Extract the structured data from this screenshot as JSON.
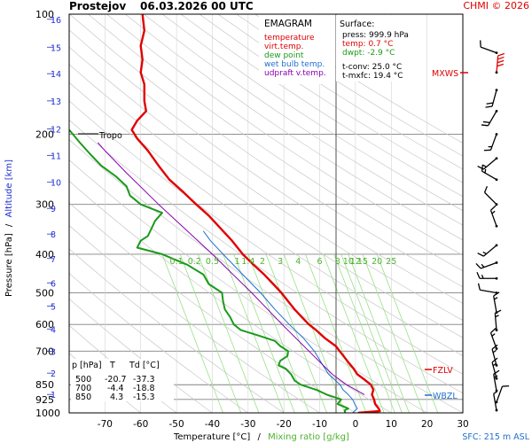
{
  "header": {
    "station": "Prostejov",
    "datetime": "06.03.2026 00 UTC",
    "copyright": "CHMI © 2026"
  },
  "legend": {
    "title": "EMAGRAM",
    "items": [
      {
        "label": "temperature",
        "color": "#e00000"
      },
      {
        "label": "virt.temp.",
        "color": "#e00000"
      },
      {
        "label": "dew point",
        "color": "#1a9a1a"
      },
      {
        "label": "wet bulb temp.",
        "color": "#1f6fd0"
      },
      {
        "label": "udpraft v.temp.",
        "color": "#8a00b0"
      }
    ]
  },
  "surface": {
    "title": "Surface:",
    "lines": [
      {
        "text": "press: 999.9 hPa",
        "color": "#000000"
      },
      {
        "text": "temp: 0.7 °C",
        "color": "#e00000"
      },
      {
        "text": "dwpt: -2.9 °C",
        "color": "#1a9a1a"
      },
      {
        "text": "",
        "color": "#000000"
      },
      {
        "text": "t-conv: 25.0 °C",
        "color": "#000000"
      },
      {
        "text": "t-mxfc: 19.4 °C",
        "color": "#000000"
      }
    ]
  },
  "level_table": {
    "headers": [
      "p [hPa]",
      "T",
      "Td [°C]"
    ],
    "rows": [
      [
        "500",
        "-20.7",
        "-37.3"
      ],
      [
        "700",
        "-4.4",
        "-18.8"
      ],
      [
        "850",
        "4.3",
        "-15.3"
      ]
    ]
  },
  "markers": {
    "tropo": "Tropo",
    "mxws": "MXWS",
    "fzlv": "FZLV",
    "wbzl": "WBZL",
    "sfc": "SFC: 215 m ASL"
  },
  "axes": {
    "ylabel_pressure": "Pressure [hPa]",
    "ylabel_sep": "/",
    "ylabel_altitude": "Altitude [km]",
    "xlabel_temp": "Temperature [°C]",
    "xlabel_sep": "/",
    "xlabel_mix": "Mixing ratio [g/kg]"
  },
  "colors": {
    "temperature": "#e00000",
    "dewpoint": "#1a9a1a",
    "wetbulb": "#1f6fd0",
    "parcel": "#8a00b0",
    "mixing": "#9be08a",
    "dry_adiabat": "#c8c8c8",
    "isobar": "#808080",
    "altitude": "#1f2fd0",
    "wind": "#000000"
  },
  "chart_data": {
    "type": "line",
    "title": "EMAGRAM",
    "xlabel": "Temperature [°C] / Mixing ratio [g/kg]",
    "ylabel": "Pressure [hPa] / Altitude [km]",
    "xlim": [
      -80,
      30
    ],
    "ylim": [
      1000,
      100
    ],
    "y_scale": "log",
    "x_ticks": [
      -70,
      -60,
      -50,
      -40,
      -30,
      -20,
      -10,
      0,
      10,
      20,
      30
    ],
    "pressure_ticks": [
      100,
      200,
      300,
      400,
      500,
      600,
      700,
      850,
      925,
      1000
    ],
    "altitude_ticks": [
      {
        "km": 1,
        "p": 899
      },
      {
        "km": 2,
        "p": 795
      },
      {
        "km": 3,
        "p": 701
      },
      {
        "km": 4,
        "p": 616
      },
      {
        "km": 5,
        "p": 540
      },
      {
        "km": 6,
        "p": 472
      },
      {
        "km": 7,
        "p": 410
      },
      {
        "km": 8,
        "p": 356
      },
      {
        "km": 9,
        "p": 307
      },
      {
        "km": 10,
        "p": 264
      },
      {
        "km": 11,
        "p": 226
      },
      {
        "km": 12,
        "p": 194
      },
      {
        "km": 13,
        "p": 165
      },
      {
        "km": 14,
        "p": 141
      },
      {
        "km": 15,
        "p": 121
      },
      {
        "km": 16,
        "p": 103
      }
    ],
    "mixing_ratio_labels": [
      "0.1",
      "0.2",
      "0.5",
      "1",
      "1.4",
      "2",
      "3",
      "4",
      "6",
      "8",
      "10",
      "12",
      "15",
      "20",
      "25"
    ],
    "mixing_ratio_label_temps": [
      -54,
      -49,
      -44,
      -37,
      -34,
      -30,
      -25,
      -20,
      -14,
      -9,
      -6,
      -4,
      -2,
      2,
      6
    ],
    "grid": true,
    "series": [
      {
        "name": "temperature",
        "color": "#e00000",
        "points": [
          {
            "p": 1000,
            "t": 0.7
          },
          {
            "p": 990,
            "t": 6.8
          },
          {
            "p": 975,
            "t": 6.5
          },
          {
            "p": 950,
            "t": 5.5
          },
          {
            "p": 925,
            "t": 5.2
          },
          {
            "p": 900,
            "t": 4.6
          },
          {
            "p": 875,
            "t": 5.0
          },
          {
            "p": 850,
            "t": 4.3
          },
          {
            "p": 825,
            "t": 2.5
          },
          {
            "p": 800,
            "t": 0.5
          },
          {
            "p": 775,
            "t": -0.5
          },
          {
            "p": 750,
            "t": -1.8
          },
          {
            "p": 700,
            "t": -4.4
          },
          {
            "p": 680,
            "t": -5.5
          },
          {
            "p": 650,
            "t": -8.5
          },
          {
            "p": 620,
            "t": -11.0
          },
          {
            "p": 600,
            "t": -13.0
          },
          {
            "p": 575,
            "t": -15.0
          },
          {
            "p": 550,
            "t": -17.0
          },
          {
            "p": 525,
            "t": -18.8
          },
          {
            "p": 500,
            "t": -20.7
          },
          {
            "p": 475,
            "t": -23.0
          },
          {
            "p": 450,
            "t": -25.5
          },
          {
            "p": 425,
            "t": -28.5
          },
          {
            "p": 400,
            "t": -31.5
          },
          {
            "p": 370,
            "t": -34.5
          },
          {
            "p": 350,
            "t": -37.0
          },
          {
            "p": 320,
            "t": -41.0
          },
          {
            "p": 300,
            "t": -44.5
          },
          {
            "p": 280,
            "t": -48.0
          },
          {
            "p": 260,
            "t": -52.0
          },
          {
            "p": 240,
            "t": -55.0
          },
          {
            "p": 220,
            "t": -58.0
          },
          {
            "p": 205,
            "t": -61.0
          },
          {
            "p": 195,
            "t": -62.5
          },
          {
            "p": 185,
            "t": -61.0
          },
          {
            "p": 175,
            "t": -58.5
          },
          {
            "p": 165,
            "t": -59.0
          },
          {
            "p": 150,
            "t": -59.0
          },
          {
            "p": 140,
            "t": -60.0
          },
          {
            "p": 130,
            "t": -59.5
          },
          {
            "p": 120,
            "t": -60.0
          },
          {
            "p": 110,
            "t": -59.0
          },
          {
            "p": 100,
            "t": -59.5
          }
        ]
      },
      {
        "name": "dew point",
        "color": "#1a9a1a",
        "points": [
          {
            "p": 1000,
            "t": -2.9
          },
          {
            "p": 985,
            "t": -3.0
          },
          {
            "p": 975,
            "t": -2.0
          },
          {
            "p": 950,
            "t": -5.0
          },
          {
            "p": 925,
            "t": -4.0
          },
          {
            "p": 900,
            "t": -8.0
          },
          {
            "p": 875,
            "t": -11.0
          },
          {
            "p": 850,
            "t": -15.3
          },
          {
            "p": 830,
            "t": -17.0
          },
          {
            "p": 800,
            "t": -18.0
          },
          {
            "p": 775,
            "t": -19.5
          },
          {
            "p": 760,
            "t": -21.5
          },
          {
            "p": 740,
            "t": -21.0
          },
          {
            "p": 720,
            "t": -19.0
          },
          {
            "p": 700,
            "t": -18.8
          },
          {
            "p": 680,
            "t": -21.0
          },
          {
            "p": 660,
            "t": -22.5
          },
          {
            "p": 640,
            "t": -27.0
          },
          {
            "p": 620,
            "t": -32.0
          },
          {
            "p": 600,
            "t": -34.0
          },
          {
            "p": 575,
            "t": -35.0
          },
          {
            "p": 550,
            "t": -36.5
          },
          {
            "p": 525,
            "t": -37.0
          },
          {
            "p": 500,
            "t": -37.3
          },
          {
            "p": 475,
            "t": -41.0
          },
          {
            "p": 450,
            "t": -42.5
          },
          {
            "p": 425,
            "t": -47.0
          },
          {
            "p": 400,
            "t": -54.0
          },
          {
            "p": 385,
            "t": -61.0
          },
          {
            "p": 370,
            "t": -60.0
          },
          {
            "p": 360,
            "t": -58.0
          },
          {
            "p": 345,
            "t": -57.0
          },
          {
            "p": 330,
            "t": -56.0
          },
          {
            "p": 315,
            "t": -54.0
          },
          {
            "p": 300,
            "t": -60.0
          },
          {
            "p": 285,
            "t": -63.0
          },
          {
            "p": 270,
            "t": -64.0
          },
          {
            "p": 255,
            "t": -67.0
          },
          {
            "p": 240,
            "t": -71.0
          },
          {
            "p": 225,
            "t": -74.0
          },
          {
            "p": 210,
            "t": -77.0
          },
          {
            "p": 195,
            "t": -80.0
          }
        ]
      },
      {
        "name": "wet bulb temp.",
        "color": "#1f6fd0",
        "points": [
          {
            "p": 1000,
            "t": -0.8
          },
          {
            "p": 975,
            "t": 0.5
          },
          {
            "p": 950,
            "t": -0.2
          },
          {
            "p": 925,
            "t": -0.8
          },
          {
            "p": 900,
            "t": -2.0
          },
          {
            "p": 875,
            "t": -3.5
          },
          {
            "p": 850,
            "t": -4.3
          },
          {
            "p": 800,
            "t": -7.5
          },
          {
            "p": 750,
            "t": -9.5
          },
          {
            "p": 700,
            "t": -11.5
          },
          {
            "p": 650,
            "t": -14.5
          },
          {
            "p": 600,
            "t": -18.5
          },
          {
            "p": 550,
            "t": -22.5
          },
          {
            "p": 500,
            "t": -26.5
          },
          {
            "p": 450,
            "t": -31.5
          },
          {
            "p": 400,
            "t": -37.0
          },
          {
            "p": 370,
            "t": -40.5
          },
          {
            "p": 350,
            "t": -42.5
          }
        ]
      },
      {
        "name": "udpraft v.temp.",
        "color": "#8a00b0",
        "points": [
          {
            "p": 900,
            "t": 2.5
          },
          {
            "p": 850,
            "t": -2.5
          },
          {
            "p": 800,
            "t": -6.5
          },
          {
            "p": 700,
            "t": -13.0
          },
          {
            "p": 600,
            "t": -20.5
          },
          {
            "p": 500,
            "t": -29.0
          },
          {
            "p": 400,
            "t": -40.0
          },
          {
            "p": 300,
            "t": -55.0
          },
          {
            "p": 250,
            "t": -64.0
          },
          {
            "p": 220,
            "t": -70.0
          },
          {
            "p": 210,
            "t": -72.0
          }
        ]
      }
    ],
    "markers": [
      {
        "label": "Tropo",
        "p": 200
      },
      {
        "label": "MXWS",
        "p": 140
      },
      {
        "label": "FZLV",
        "p": 790
      },
      {
        "label": "WBZL",
        "p": 907
      }
    ],
    "wind_barbs": [
      {
        "p": 125,
        "dir": 290,
        "speed": 10
      },
      {
        "p": 140,
        "dir": 5,
        "speed": 40
      },
      {
        "p": 155,
        "dir": 195,
        "speed": 20
      },
      {
        "p": 175,
        "dir": 210,
        "speed": 20
      },
      {
        "p": 200,
        "dir": 200,
        "speed": 15
      },
      {
        "p": 230,
        "dir": 230,
        "speed": 15
      },
      {
        "p": 260,
        "dir": 300,
        "speed": 15
      },
      {
        "p": 300,
        "dir": 315,
        "speed": 10
      },
      {
        "p": 340,
        "dir": 340,
        "speed": 15
      },
      {
        "p": 380,
        "dir": 230,
        "speed": 15
      },
      {
        "p": 420,
        "dir": 250,
        "speed": 15
      },
      {
        "p": 460,
        "dir": 270,
        "speed": 15
      },
      {
        "p": 500,
        "dir": 280,
        "speed": 10
      },
      {
        "p": 560,
        "dir": 350,
        "speed": 15
      },
      {
        "p": 620,
        "dir": 355,
        "speed": 15
      },
      {
        "p": 690,
        "dir": 340,
        "speed": 15
      },
      {
        "p": 760,
        "dir": 345,
        "speed": 15
      },
      {
        "p": 820,
        "dir": 345,
        "speed": 15
      },
      {
        "p": 880,
        "dir": 350,
        "speed": 15
      },
      {
        "p": 940,
        "dir": 20,
        "speed": 10
      },
      {
        "p": 985,
        "dir": 350,
        "speed": 5
      }
    ]
  }
}
